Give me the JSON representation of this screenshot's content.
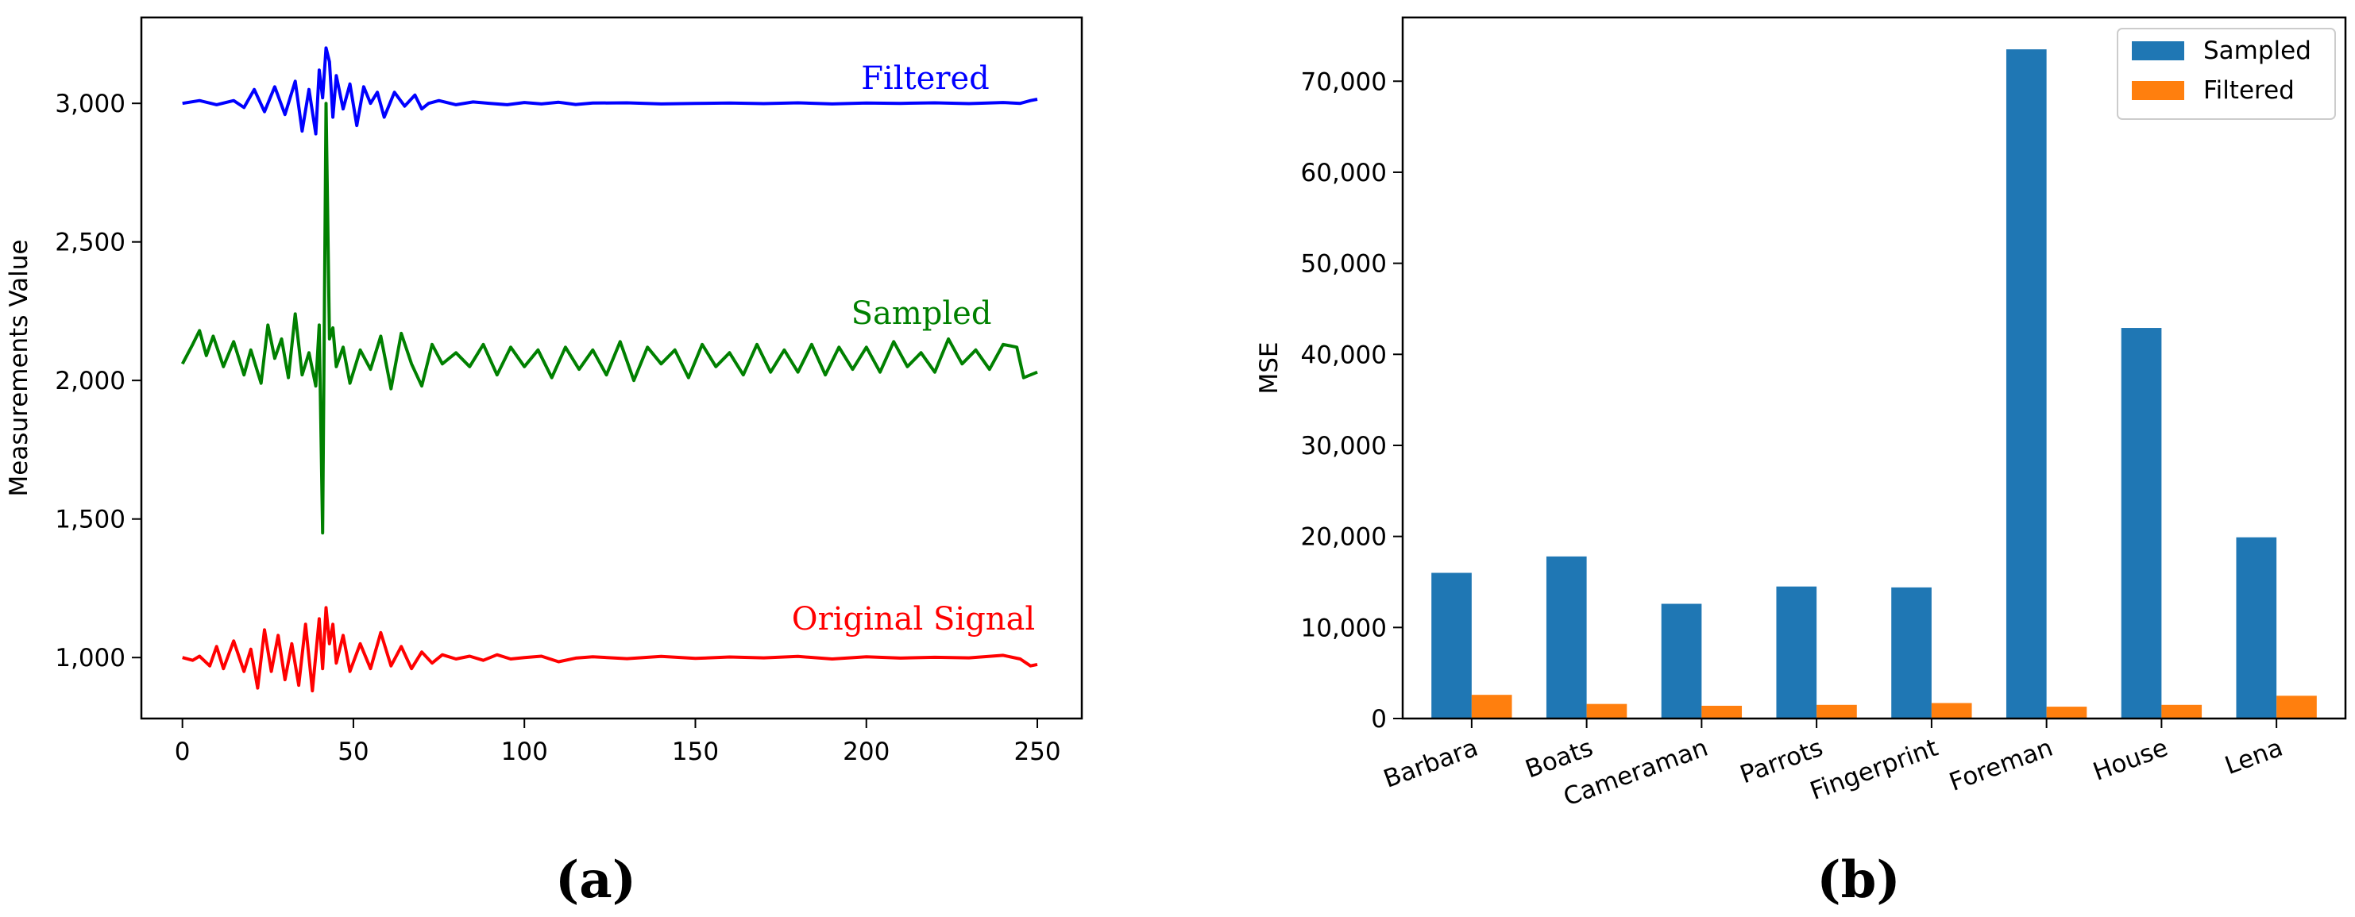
{
  "panels": {
    "a_label": "(a)",
    "b_label": "(b)"
  },
  "chart_data": [
    {
      "type": "line",
      "title": "",
      "xlabel": "",
      "ylabel": "Measurements Value",
      "xlim": [
        -12,
        263
      ],
      "ylim": [
        780,
        3310
      ],
      "grid": false,
      "xticks": [
        0,
        50,
        100,
        150,
        200,
        250
      ],
      "xtick_labels": [
        "0",
        "50",
        "100",
        "150",
        "200",
        "250"
      ],
      "yticks": [
        1000,
        1500,
        2000,
        2500,
        3000
      ],
      "ytick_labels": [
        "1,000",
        "1,500",
        "2,000",
        "2,500",
        "3,000"
      ],
      "series": [
        {
          "name": "Filtered",
          "color": "#0000ff",
          "x": [
            0,
            5,
            10,
            15,
            18,
            21,
            24,
            27,
            30,
            33,
            35,
            37,
            39,
            40,
            41,
            42,
            43,
            44,
            45,
            47,
            49,
            51,
            53,
            55,
            57,
            59,
            62,
            65,
            68,
            70,
            72,
            75,
            80,
            85,
            90,
            95,
            100,
            105,
            110,
            115,
            120,
            130,
            140,
            150,
            160,
            170,
            180,
            190,
            200,
            210,
            220,
            230,
            240,
            245,
            248,
            250
          ],
          "y": [
            3000,
            3010,
            2995,
            3010,
            2985,
            3050,
            2970,
            3060,
            2960,
            3080,
            2900,
            3050,
            2890,
            3120,
            3020,
            3200,
            3150,
            2950,
            3100,
            2980,
            3070,
            2920,
            3060,
            3000,
            3040,
            2950,
            3040,
            2990,
            3030,
            2980,
            3000,
            3010,
            2995,
            3005,
            3000,
            2995,
            3003,
            2998,
            3004,
            2996,
            3001,
            3002,
            2998,
            3000,
            3001,
            2999,
            3002,
            2998,
            3001,
            3000,
            3002,
            2999,
            3003,
            3000,
            3010,
            3015
          ]
        },
        {
          "name": "Sampled",
          "color": "#008000",
          "x": [
            0,
            3,
            5,
            7,
            9,
            12,
            15,
            18,
            20,
            23,
            25,
            27,
            29,
            31,
            33,
            35,
            37,
            39,
            40,
            41,
            42,
            43,
            44,
            45,
            47,
            49,
            52,
            55,
            58,
            61,
            64,
            67,
            70,
            73,
            76,
            80,
            84,
            88,
            92,
            96,
            100,
            104,
            108,
            112,
            116,
            120,
            124,
            128,
            132,
            136,
            140,
            144,
            148,
            152,
            156,
            160,
            164,
            168,
            172,
            176,
            180,
            184,
            188,
            192,
            196,
            200,
            204,
            208,
            212,
            216,
            220,
            224,
            228,
            232,
            236,
            240,
            244,
            246,
            248,
            250
          ],
          "y": [
            2060,
            2130,
            2180,
            2090,
            2160,
            2050,
            2140,
            2020,
            2110,
            1990,
            2200,
            2080,
            2150,
            2010,
            2240,
            2020,
            2100,
            1980,
            2200,
            1450,
            3000,
            2150,
            2190,
            2050,
            2120,
            1990,
            2110,
            2040,
            2160,
            1970,
            2170,
            2060,
            1980,
            2130,
            2060,
            2100,
            2050,
            2130,
            2020,
            2120,
            2050,
            2110,
            2010,
            2120,
            2040,
            2110,
            2020,
            2140,
            2000,
            2120,
            2060,
            2110,
            2010,
            2130,
            2050,
            2100,
            2020,
            2130,
            2030,
            2110,
            2030,
            2130,
            2020,
            2120,
            2040,
            2120,
            2030,
            2140,
            2050,
            2100,
            2030,
            2150,
            2060,
            2110,
            2040,
            2130,
            2120,
            2010,
            2020,
            2030
          ]
        },
        {
          "name": "Original Signal",
          "color": "#ff0000",
          "x": [
            0,
            3,
            5,
            8,
            10,
            12,
            15,
            18,
            20,
            22,
            24,
            26,
            28,
            30,
            32,
            34,
            36,
            38,
            40,
            41,
            42,
            43,
            44,
            45,
            47,
            49,
            52,
            55,
            58,
            61,
            64,
            67,
            70,
            73,
            76,
            80,
            84,
            88,
            92,
            96,
            100,
            105,
            110,
            115,
            120,
            130,
            140,
            150,
            160,
            170,
            180,
            190,
            200,
            210,
            220,
            230,
            240,
            245,
            248,
            250
          ],
          "y": [
            1000,
            990,
            1005,
            970,
            1040,
            960,
            1060,
            950,
            1030,
            890,
            1100,
            950,
            1080,
            920,
            1050,
            900,
            1120,
            880,
            1140,
            960,
            1180,
            1050,
            1120,
            980,
            1080,
            950,
            1050,
            960,
            1090,
            970,
            1040,
            960,
            1020,
            980,
            1010,
            995,
            1005,
            990,
            1010,
            995,
            1000,
            1005,
            985,
            998,
            1003,
            996,
            1004,
            997,
            1002,
            999,
            1004,
            995,
            1003,
            998,
            1001,
            999,
            1008,
            995,
            970,
            975
          ]
        }
      ],
      "annotations": [
        "Filtered",
        "Sampled",
        "Original Signal"
      ]
    },
    {
      "type": "bar",
      "title": "",
      "xlabel": "",
      "ylabel": "MSE",
      "ylim": [
        0,
        77000
      ],
      "grid": false,
      "yticks": [
        0,
        10000,
        20000,
        30000,
        40000,
        50000,
        60000,
        70000
      ],
      "ytick_labels": [
        "0",
        "10,000",
        "20,000",
        "30,000",
        "40,000",
        "50,000",
        "60,000",
        "70,000"
      ],
      "categories": [
        "Barbara",
        "Boats",
        "Cameraman",
        "Parrots",
        "Fingerprint",
        "Foreman",
        "House",
        "Lena"
      ],
      "series": [
        {
          "name": "Sampled",
          "color": "#1f77b4",
          "values": [
            16000,
            17800,
            12600,
            14500,
            14400,
            73500,
            42900,
            19900
          ]
        },
        {
          "name": "Filtered",
          "color": "#ff7f0e",
          "values": [
            2600,
            1600,
            1400,
            1500,
            1700,
            1300,
            1500,
            2500
          ]
        }
      ],
      "legend_position": "top-right"
    }
  ]
}
